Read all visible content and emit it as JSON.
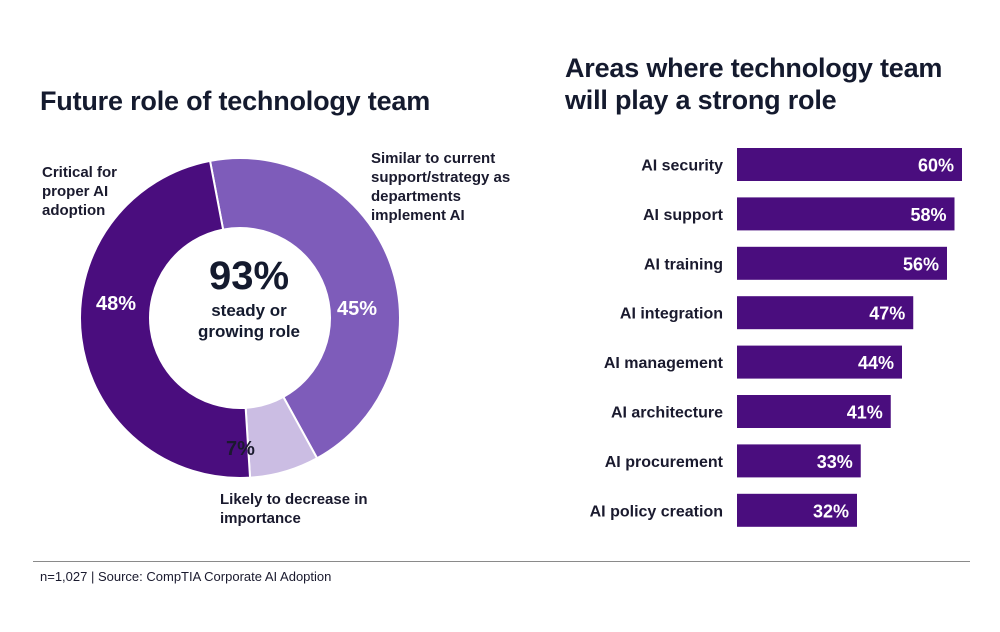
{
  "chart_data": [
    {
      "type": "pie",
      "title": "Future role of technology team",
      "center_value": "93%",
      "center_label": "steady or growing role",
      "slices": [
        {
          "label": "Critical for proper AI adoption",
          "value": 48,
          "value_label": "48%",
          "color": "#4a0d7e"
        },
        {
          "label": "Similar to current support/strategy as departments implement AI",
          "value": 45,
          "value_label": "45%",
          "color": "#7e5cba"
        },
        {
          "label": "Likely to decrease in importance",
          "value": 7,
          "value_label": "7%",
          "color": "#cbbde3"
        }
      ]
    },
    {
      "type": "bar",
      "orientation": "horizontal",
      "title": "Areas where technology team will play a strong role",
      "bar_color": "#4a0d7e",
      "categories": [
        "AI security",
        "AI support",
        "AI training",
        "AI integration",
        "AI management",
        "AI architecture",
        "AI procurement",
        "AI policy creation"
      ],
      "values": [
        60,
        58,
        56,
        47,
        44,
        41,
        33,
        32
      ],
      "value_labels": [
        "60%",
        "58%",
        "56%",
        "47%",
        "44%",
        "41%",
        "33%",
        "32%"
      ],
      "xlim": [
        0,
        60
      ]
    }
  ],
  "footnote": "n=1,027 | Source: CompTIA Corporate AI Adoption"
}
